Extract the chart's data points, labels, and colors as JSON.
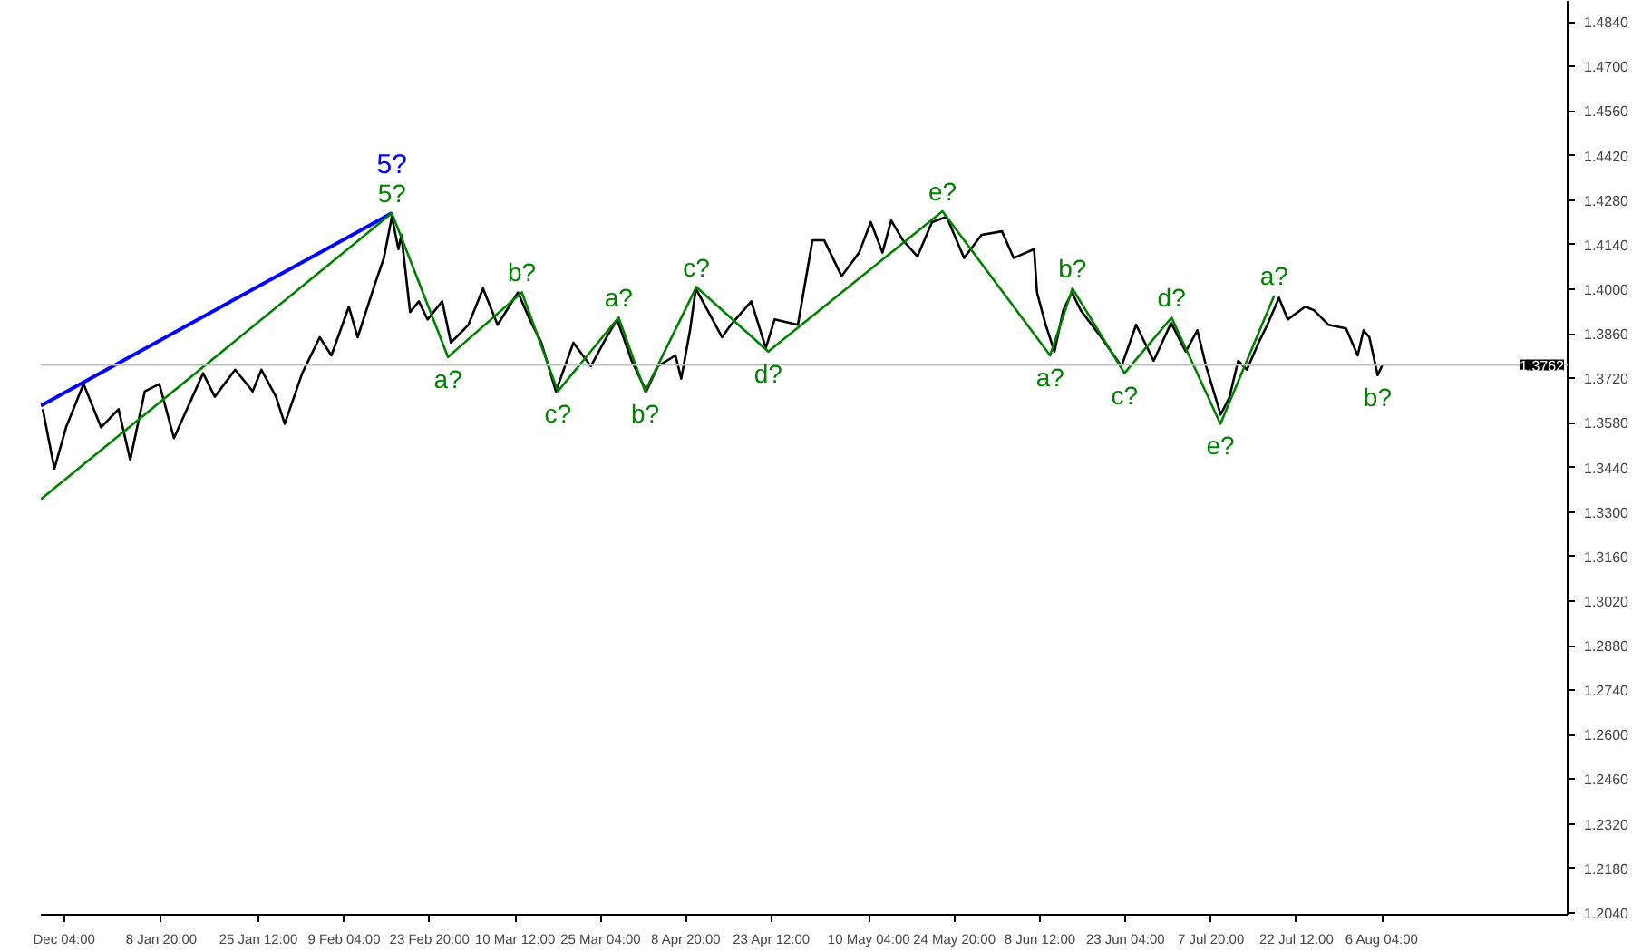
{
  "chart_data": {
    "type": "line",
    "xlim": [
      "2020-12-19T04:00",
      "2021-09-07"
    ],
    "ylim": [
      1.2034,
      1.4906
    ],
    "xticks": [
      {
        "value": "2020-12-23T04:00",
        "label": "Dec 04:00"
      },
      {
        "value": "2021-01-08T20:00",
        "label": "8 Jan 20:00"
      },
      {
        "value": "2021-01-25T12:00",
        "label": "25 Jan 12:00"
      },
      {
        "value": "2021-02-09T04:00",
        "label": "9 Feb 04:00"
      },
      {
        "value": "2021-02-23T20:00",
        "label": "23 Feb 20:00"
      },
      {
        "value": "2021-03-10T12:00",
        "label": "10 Mar 12:00"
      },
      {
        "value": "2021-03-25T04:00",
        "label": "25 Mar 04:00"
      },
      {
        "value": "2021-04-08T20:00",
        "label": "8 Apr 20:00"
      },
      {
        "value": "2021-04-23T12:00",
        "label": "23 Apr 12:00"
      },
      {
        "value": "2021-05-10T04:00",
        "label": "10 May 04:00"
      },
      {
        "value": "2021-05-24T20:00",
        "label": "24 May 20:00"
      },
      {
        "value": "2021-06-08T12:00",
        "label": "8 Jun 12:00"
      },
      {
        "value": "2021-06-23T04:00",
        "label": "23 Jun 04:00"
      },
      {
        "value": "2021-07-07T20:00",
        "label": "7 Jul 20:00"
      },
      {
        "value": "2021-07-22T12:00",
        "label": "22 Jul 12:00"
      },
      {
        "value": "2021-08-06T04:00",
        "label": "6 Aug 04:00"
      }
    ],
    "yticks": [
      {
        "value": 1.204,
        "label": "1.2040"
      },
      {
        "value": 1.218,
        "label": "1.2180"
      },
      {
        "value": 1.232,
        "label": "1.2320"
      },
      {
        "value": 1.246,
        "label": "1.2460"
      },
      {
        "value": 1.26,
        "label": "1.2600"
      },
      {
        "value": 1.274,
        "label": "1.2740"
      },
      {
        "value": 1.288,
        "label": "1.2880"
      },
      {
        "value": 1.302,
        "label": "1.3020"
      },
      {
        "value": 1.316,
        "label": "1.3160"
      },
      {
        "value": 1.33,
        "label": "1.3300"
      },
      {
        "value": 1.344,
        "label": "1.3440"
      },
      {
        "value": 1.358,
        "label": "1.3580"
      },
      {
        "value": 1.372,
        "label": "1.3720"
      },
      {
        "value": 1.386,
        "label": "1.3860"
      },
      {
        "value": 1.4,
        "label": "1.4000"
      },
      {
        "value": 1.414,
        "label": "1.4140"
      },
      {
        "value": 1.428,
        "label": "1.4280"
      },
      {
        "value": 1.442,
        "label": "1.4420"
      },
      {
        "value": 1.456,
        "label": "1.4560"
      },
      {
        "value": 1.47,
        "label": "1.4700"
      },
      {
        "value": 1.484,
        "label": "1.4840"
      }
    ],
    "grid": false,
    "series": [
      {
        "color": "#000000",
        "x": [
          "2020-12-19T12:00",
          "2020-12-21T12:00",
          "2020-12-23T12:00",
          "2020-12-26T12:00",
          "2020-12-29T12:00",
          "2021-01-01T12:00",
          "2021-01-03T12:00",
          "2021-01-06",
          "2021-01-08T12:00",
          "2021-01-11",
          "2021-01-16",
          "2021-01-18",
          "2021-01-21T12:00",
          "2021-01-24T12:00",
          "2021-01-26",
          "2021-01-28T12:00",
          "2021-01-30",
          "2021-02-02",
          "2021-02-05",
          "2021-02-07",
          "2021-02-10",
          "2021-02-11T12:00",
          "2021-02-14T12:00",
          "2021-02-16",
          "2021-02-17T09:00",
          "2021-02-18T12:00",
          "2021-02-19",
          "2021-02-20T12:00",
          "2021-02-22",
          "2021-02-23T12:00",
          "2021-02-26",
          "2021-02-27T12:00",
          "2021-03-02T12:00",
          "2021-03-05",
          "2021-03-07T12:00",
          "2021-03-11",
          "2021-03-13",
          "2021-03-15",
          "2021-03-17T12:00",
          "2021-03-20T12:00",
          "2021-03-23T12:00",
          "2021-03-26",
          "2021-03-28",
          "2021-03-30T12:00",
          "2021-04-02",
          "2021-04-04",
          "2021-04-07",
          "2021-04-08",
          "2021-04-09T12:00",
          "2021-04-10T12:00",
          "2021-04-15",
          "2021-04-16T12:00",
          "2021-04-20",
          "2021-04-22T12:00",
          "2021-04-24",
          "2021-04-28",
          "2021-04-30T12:00",
          "2021-05-02T12:00",
          "2021-05-05T12:00",
          "2021-05-08T12:00",
          "2021-05-10T12:00",
          "2021-05-12T12:00",
          "2021-05-14",
          "2021-05-16",
          "2021-05-18T12:00",
          "2021-05-21",
          "2021-05-23T12:00",
          "2021-05-26T12:00",
          "2021-05-29T12:00",
          "2021-06-02",
          "2021-06-04",
          "2021-06-07T12:00",
          "2021-06-08",
          "2021-06-09T12:00",
          "2021-06-11",
          "2021-06-12T12:00",
          "2021-06-14",
          "2021-06-15T12:00",
          "2021-06-19",
          "2021-06-22T12:00",
          "2021-06-25",
          "2021-06-28",
          "2021-07-01",
          "2021-07-03T12:00",
          "2021-07-05T12:00",
          "2021-07-07",
          "2021-07-09T12:00",
          "2021-07-11",
          "2021-07-12T12:00",
          "2021-07-14",
          "2021-07-16",
          "2021-07-17T12:00",
          "2021-07-19T12:00",
          "2021-07-21",
          "2021-07-24",
          "2021-07-25T12:00",
          "2021-07-28",
          "2021-07-31",
          "2021-08-02",
          "2021-08-03",
          "2021-08-04",
          "2021-08-05T10:00",
          "2021-08-06T07:00"
        ],
        "values": [
          1.3623,
          1.3436,
          1.3566,
          1.3702,
          1.3566,
          1.3623,
          1.3464,
          1.3679,
          1.3702,
          1.3532,
          1.3736,
          1.3662,
          1.3747,
          1.3679,
          1.3747,
          1.3662,
          1.3577,
          1.3736,
          1.3849,
          1.3792,
          1.3945,
          1.3849,
          1.4018,
          1.4098,
          1.4228,
          1.4126,
          1.4171,
          1.3928,
          1.3962,
          1.3905,
          1.3962,
          1.3832,
          1.3888,
          1.4002,
          1.3888,
          1.399,
          1.3905,
          1.3832,
          1.3679,
          1.3832,
          1.3758,
          1.3843,
          1.3905,
          1.3775,
          1.3679,
          1.3758,
          1.3792,
          1.3719,
          1.3871,
          1.4002,
          1.3849,
          1.3888,
          1.3962,
          1.3815,
          1.3905,
          1.3888,
          1.4154,
          1.4154,
          1.4041,
          1.4115,
          1.4211,
          1.4115,
          1.4216,
          1.4154,
          1.4103,
          1.4211,
          1.4228,
          1.4098,
          1.4171,
          1.4182,
          1.4098,
          1.4126,
          1.399,
          1.3888,
          1.3804,
          1.3934,
          1.399,
          1.3934,
          1.3849,
          1.3758,
          1.3888,
          1.3775,
          1.3894,
          1.3804,
          1.3871,
          1.3758,
          1.3606,
          1.366,
          1.3775,
          1.3747,
          1.3832,
          1.3888,
          1.3973,
          1.3905,
          1.3945,
          1.3934,
          1.3888,
          1.3877,
          1.3792,
          1.3871,
          1.3849,
          1.373,
          1.3764
        ]
      },
      {
        "name": "5?",
        "color": "#0000ff",
        "x": [
          "2020-12-19T04:00",
          "2021-02-17T09:00"
        ],
        "values": [
          1.3634,
          1.4239
        ]
      },
      {
        "color": "#008000",
        "x": [
          "2020-12-19T04:00",
          "2021-02-17T09:00",
          "2021-02-27",
          "2021-03-11T16:00",
          "2021-03-17T20:00",
          "2021-03-28T06:00",
          "2021-04-01T19:00",
          "2021-04-10T14:00",
          "2021-04-22T22:00",
          "2021-05-22T19:00",
          "2021-06-10T06:00",
          "2021-06-14T02:00",
          "2021-06-23",
          "2021-07-01T02:00",
          "2021-07-09T11:00",
          "2021-07-18T16:00"
        ],
        "values": [
          1.334,
          1.4239,
          1.3787,
          1.399,
          1.3679,
          1.3911,
          1.3679,
          1.4007,
          1.3804,
          1.4245,
          1.3792,
          1.4002,
          1.3736,
          1.3911,
          1.3577,
          1.3979
        ]
      }
    ],
    "ref_lines": [
      {
        "axis": "y",
        "value": 1.3762,
        "label": "1.3762",
        "color": "#c0c0c0"
      }
    ],
    "annotations": [
      {
        "text": "5?",
        "x": "2021-02-17T09:00",
        "y": 1.4239
      },
      {
        "text": "a?",
        "x": "2021-02-27",
        "y": 1.3787
      },
      {
        "text": "b?",
        "x": "2021-03-11T16:00",
        "y": 1.399
      },
      {
        "text": "c?",
        "x": "2021-03-17T20:00",
        "y": 1.3679
      },
      {
        "text": "a?",
        "x": "2021-03-28T06:00",
        "y": 1.3911
      },
      {
        "text": "b?",
        "x": "2021-04-01T19:00",
        "y": 1.3679
      },
      {
        "text": "c?",
        "x": "2021-04-10T14:00",
        "y": 1.4007
      },
      {
        "text": "d?",
        "x": "2021-04-22T22:00",
        "y": 1.3804
      },
      {
        "text": "e?",
        "x": "2021-05-22T19:00",
        "y": 1.4245
      },
      {
        "text": "a?",
        "x": "2021-06-10T06:00",
        "y": 1.3792
      },
      {
        "text": "b?",
        "x": "2021-06-14T02:00",
        "y": 1.4002
      },
      {
        "text": "c?",
        "x": "2021-06-23",
        "y": 1.3736
      },
      {
        "text": "d?",
        "x": "2021-07-01T02:00",
        "y": 1.3911
      },
      {
        "text": "e?",
        "x": "2021-07-09T11:00",
        "y": 1.3577
      },
      {
        "text": "a?",
        "x": "2021-07-18T16:00",
        "y": 1.3979
      },
      {
        "text": "b?",
        "x": "2021-08-05T10:00",
        "y": 1.373
      }
    ]
  }
}
